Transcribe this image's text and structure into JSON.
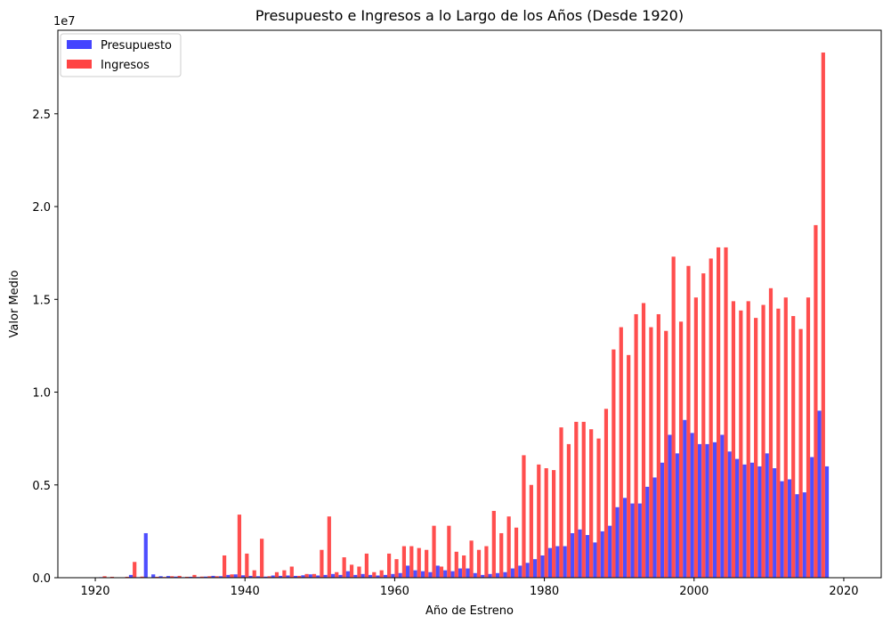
{
  "chart_data": {
    "type": "bar",
    "title": "Presupuesto e Ingresos a lo Largo de los Años (Desde 1920)",
    "xlabel": "Año de Estreno",
    "ylabel": "Valor Medio",
    "scale_label": "1e7",
    "xlim": [
      1915,
      2025
    ],
    "ylim": [
      0,
      29500000.0
    ],
    "x_ticks": [
      1920,
      1940,
      1960,
      1980,
      2000,
      2020
    ],
    "y_ticks": [
      0,
      5000000,
      10000000,
      15000000,
      20000000,
      25000000
    ],
    "y_tick_labels": [
      "0.0",
      "0.5",
      "1.0",
      "1.5",
      "2.0",
      "2.5"
    ],
    "legend_position": "top-left",
    "series": [
      {
        "name": "Presupuesto",
        "color": "#4444ff",
        "offset": -0.25,
        "points": [
          [
            1921,
            30000
          ],
          [
            1922,
            20000
          ],
          [
            1923,
            10000
          ],
          [
            1924,
            20000
          ],
          [
            1925,
            150000
          ],
          [
            1926,
            30000
          ],
          [
            1927,
            2400000
          ],
          [
            1928,
            180000
          ],
          [
            1929,
            80000
          ],
          [
            1930,
            90000
          ],
          [
            1931,
            60000
          ],
          [
            1932,
            30000
          ],
          [
            1933,
            50000
          ],
          [
            1934,
            40000
          ],
          [
            1935,
            60000
          ],
          [
            1936,
            100000
          ],
          [
            1937,
            80000
          ],
          [
            1938,
            150000
          ],
          [
            1939,
            180000
          ],
          [
            1940,
            130000
          ],
          [
            1941,
            100000
          ],
          [
            1942,
            80000
          ],
          [
            1943,
            60000
          ],
          [
            1944,
            120000
          ],
          [
            1945,
            100000
          ],
          [
            1946,
            120000
          ],
          [
            1947,
            100000
          ],
          [
            1948,
            130000
          ],
          [
            1949,
            180000
          ],
          [
            1950,
            120000
          ],
          [
            1951,
            150000
          ],
          [
            1952,
            200000
          ],
          [
            1953,
            150000
          ],
          [
            1954,
            350000
          ],
          [
            1955,
            150000
          ],
          [
            1956,
            200000
          ],
          [
            1957,
            150000
          ],
          [
            1958,
            120000
          ],
          [
            1959,
            150000
          ],
          [
            1960,
            200000
          ],
          [
            1961,
            250000
          ],
          [
            1962,
            650000
          ],
          [
            1963,
            400000
          ],
          [
            1964,
            350000
          ],
          [
            1965,
            300000
          ],
          [
            1966,
            650000
          ],
          [
            1967,
            400000
          ],
          [
            1968,
            350000
          ],
          [
            1969,
            500000
          ],
          [
            1970,
            500000
          ],
          [
            1971,
            250000
          ],
          [
            1972,
            150000
          ],
          [
            1973,
            200000
          ],
          [
            1974,
            250000
          ],
          [
            1975,
            300000
          ],
          [
            1976,
            500000
          ],
          [
            1977,
            650000
          ],
          [
            1978,
            800000
          ],
          [
            1979,
            1000000
          ],
          [
            1980,
            1200000
          ],
          [
            1981,
            1600000
          ],
          [
            1982,
            1700000
          ],
          [
            1983,
            1700000
          ],
          [
            1984,
            2400000
          ],
          [
            1985,
            2600000
          ],
          [
            1986,
            2300000
          ],
          [
            1987,
            1900000
          ],
          [
            1988,
            2500000
          ],
          [
            1989,
            2800000
          ],
          [
            1990,
            3800000
          ],
          [
            1991,
            4300000
          ],
          [
            1992,
            4000000
          ],
          [
            1993,
            4000000
          ],
          [
            1994,
            4900000
          ],
          [
            1995,
            5400000
          ],
          [
            1996,
            6200000
          ],
          [
            1997,
            7700000
          ],
          [
            1998,
            6700000
          ],
          [
            1999,
            8500000
          ],
          [
            2000,
            7800000
          ],
          [
            2001,
            7200000
          ],
          [
            2002,
            7200000
          ],
          [
            2003,
            7300000
          ],
          [
            2004,
            7700000
          ],
          [
            2005,
            6800000
          ],
          [
            2006,
            6400000
          ],
          [
            2007,
            6100000
          ],
          [
            2008,
            6200000
          ],
          [
            2009,
            6000000
          ],
          [
            2010,
            6700000
          ],
          [
            2011,
            5900000
          ],
          [
            2012,
            5200000
          ],
          [
            2013,
            5300000
          ],
          [
            2014,
            4500000
          ],
          [
            2015,
            4600000
          ],
          [
            2016,
            6500000
          ],
          [
            2017,
            9000000
          ],
          [
            2018,
            6000000
          ]
        ]
      },
      {
        "name": "Ingresos",
        "color": "#ff4444",
        "offset": 0.25,
        "points": [
          [
            1921,
            80000
          ],
          [
            1922,
            50000
          ],
          [
            1923,
            20000
          ],
          [
            1924,
            50000
          ],
          [
            1925,
            850000
          ],
          [
            1926,
            60000
          ],
          [
            1928,
            50000
          ],
          [
            1929,
            40000
          ],
          [
            1930,
            80000
          ],
          [
            1931,
            100000
          ],
          [
            1932,
            50000
          ],
          [
            1933,
            150000
          ],
          [
            1934,
            60000
          ],
          [
            1935,
            80000
          ],
          [
            1936,
            80000
          ],
          [
            1937,
            1200000
          ],
          [
            1938,
            180000
          ],
          [
            1939,
            3400000
          ],
          [
            1940,
            1300000
          ],
          [
            1941,
            400000
          ],
          [
            1942,
            2100000
          ],
          [
            1943,
            80000
          ],
          [
            1944,
            300000
          ],
          [
            1945,
            400000
          ],
          [
            1946,
            600000
          ],
          [
            1947,
            100000
          ],
          [
            1948,
            200000
          ],
          [
            1949,
            200000
          ],
          [
            1950,
            1500000
          ],
          [
            1951,
            3300000
          ],
          [
            1952,
            300000
          ],
          [
            1953,
            1100000
          ],
          [
            1954,
            700000
          ],
          [
            1955,
            600000
          ],
          [
            1956,
            1300000
          ],
          [
            1957,
            300000
          ],
          [
            1958,
            400000
          ],
          [
            1959,
            1300000
          ],
          [
            1960,
            1000000
          ],
          [
            1961,
            1700000
          ],
          [
            1962,
            1700000
          ],
          [
            1963,
            1600000
          ],
          [
            1964,
            1500000
          ],
          [
            1965,
            2800000
          ],
          [
            1966,
            600000
          ],
          [
            1967,
            2800000
          ],
          [
            1968,
            1400000
          ],
          [
            1969,
            1200000
          ],
          [
            1970,
            2000000
          ],
          [
            1971,
            1500000
          ],
          [
            1972,
            1700000
          ],
          [
            1973,
            3600000
          ],
          [
            1974,
            2400000
          ],
          [
            1975,
            3300000
          ],
          [
            1976,
            2700000
          ],
          [
            1977,
            6600000
          ],
          [
            1978,
            5000000
          ],
          [
            1979,
            6100000
          ],
          [
            1980,
            5900000
          ],
          [
            1981,
            5800000
          ],
          [
            1982,
            8100000
          ],
          [
            1983,
            7200000
          ],
          [
            1984,
            8400000
          ],
          [
            1985,
            8400000
          ],
          [
            1986,
            8000000
          ],
          [
            1987,
            7500000
          ],
          [
            1988,
            9100000
          ],
          [
            1989,
            12300000
          ],
          [
            1990,
            13500000
          ],
          [
            1991,
            12000000
          ],
          [
            1992,
            14200000
          ],
          [
            1993,
            14800000
          ],
          [
            1994,
            13500000
          ],
          [
            1995,
            14200000
          ],
          [
            1996,
            13300000
          ],
          [
            1997,
            17300000
          ],
          [
            1998,
            13800000
          ],
          [
            1999,
            16800000
          ],
          [
            2000,
            15100000
          ],
          [
            2001,
            16400000
          ],
          [
            2002,
            17200000
          ],
          [
            2003,
            17800000
          ],
          [
            2004,
            17800000
          ],
          [
            2005,
            14900000
          ],
          [
            2006,
            14400000
          ],
          [
            2007,
            14900000
          ],
          [
            2008,
            14000000
          ],
          [
            2009,
            14700000
          ],
          [
            2010,
            15600000
          ],
          [
            2011,
            14500000
          ],
          [
            2012,
            15100000
          ],
          [
            2013,
            14100000
          ],
          [
            2014,
            13400000
          ],
          [
            2015,
            15100000
          ],
          [
            2016,
            19000000
          ],
          [
            2017,
            28300000
          ]
        ]
      }
    ]
  }
}
